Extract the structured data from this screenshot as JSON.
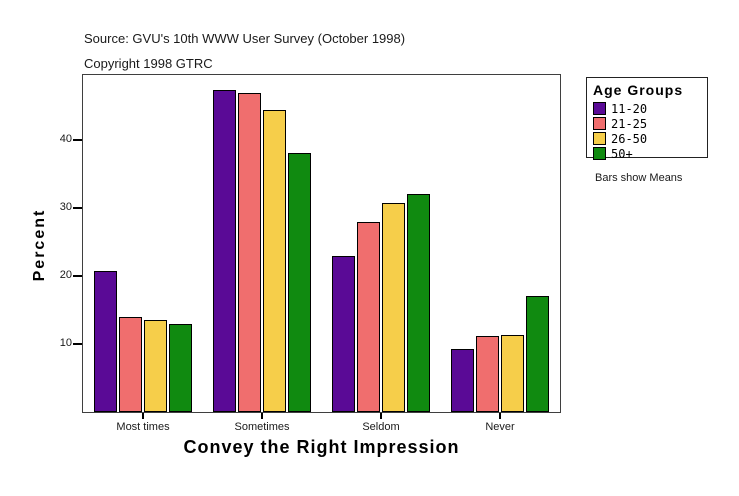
{
  "legend": {
    "title": "Age Groups",
    "note": "Bars show Means"
  },
  "chart_data": {
    "type": "bar",
    "title": "Source: GVU's 10th WWW User Survey (October 1998)",
    "subtitle": "Copyright 1998 GTRC",
    "xlabel": "Convey the Right Impression",
    "ylabel": "Percent",
    "categories": [
      "Most times",
      "Sometimes",
      "Seldom",
      "Never"
    ],
    "series": [
      {
        "name": "11-20",
        "color": "#5A0A96",
        "values": [
          20.7,
          47.4,
          23.0,
          9.2
        ]
      },
      {
        "name": "21-25",
        "color": "#F06E6E",
        "values": [
          14.0,
          47.0,
          27.9,
          11.2
        ]
      },
      {
        "name": "26-50",
        "color": "#F6CE4A",
        "values": [
          13.5,
          44.5,
          30.7,
          11.4
        ]
      },
      {
        "name": "50+",
        "color": "#108A10",
        "values": [
          12.9,
          38.1,
          32.1,
          17.1
        ]
      }
    ],
    "ylim": [
      0,
      49.6
    ],
    "yticks": [
      10,
      20,
      30,
      40
    ],
    "grid": false,
    "legend_position": "right",
    "annotation": "Bars show Means"
  }
}
